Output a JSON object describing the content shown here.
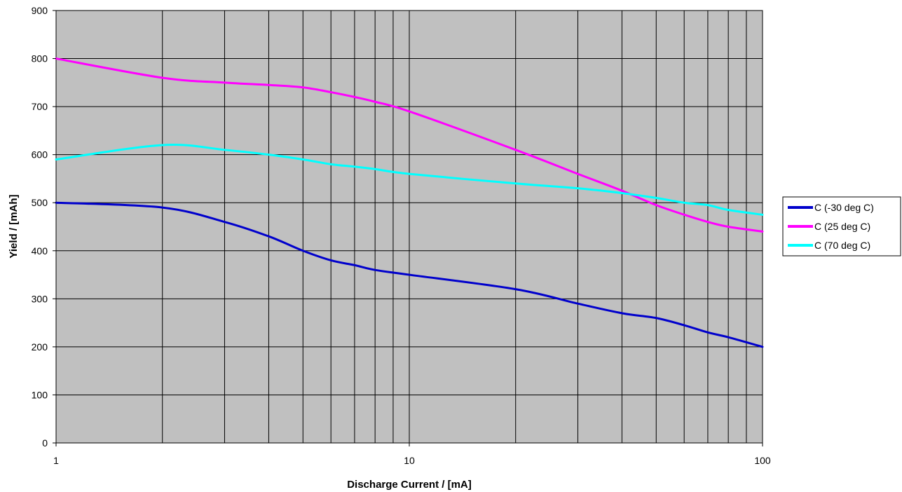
{
  "chart_data": {
    "type": "line",
    "title": "",
    "xlabel": "Discharge Current / [mA]",
    "ylabel": "Yield / [mAh]",
    "xscale": "log",
    "xlim": [
      1,
      100
    ],
    "ylim": [
      0,
      900
    ],
    "x_ticks": [
      "1",
      "10",
      "100"
    ],
    "y_ticks": [
      "0",
      "100",
      "200",
      "300",
      "400",
      "500",
      "600",
      "700",
      "800",
      "900"
    ],
    "grid": true,
    "legend": "right",
    "plot_background": "#c0c0c0",
    "series": [
      {
        "name": "C (-30 deg C)",
        "color": "#0000cc",
        "x": [
          1,
          2,
          3,
          4,
          5,
          6,
          7,
          8,
          10,
          20,
          30,
          40,
          50,
          60,
          70,
          80,
          100
        ],
        "y": [
          500,
          490,
          460,
          430,
          400,
          380,
          370,
          360,
          350,
          320,
          290,
          270,
          260,
          245,
          230,
          220,
          200
        ]
      },
      {
        "name": "C (25 deg C)",
        "color": "#ff00ff",
        "x": [
          1,
          2,
          3,
          4,
          5,
          6,
          7,
          8,
          10,
          20,
          30,
          40,
          50,
          60,
          70,
          80,
          100
        ],
        "y": [
          800,
          760,
          750,
          745,
          740,
          730,
          720,
          710,
          690,
          610,
          560,
          525,
          495,
          475,
          460,
          450,
          440
        ]
      },
      {
        "name": "C (70 deg C)",
        "color": "#00ffff",
        "x": [
          1,
          2,
          3,
          4,
          5,
          6,
          7,
          8,
          10,
          20,
          30,
          40,
          50,
          60,
          70,
          80,
          100
        ],
        "y": [
          590,
          620,
          610,
          600,
          590,
          580,
          575,
          570,
          560,
          540,
          530,
          520,
          510,
          500,
          495,
          485,
          475
        ]
      }
    ]
  }
}
